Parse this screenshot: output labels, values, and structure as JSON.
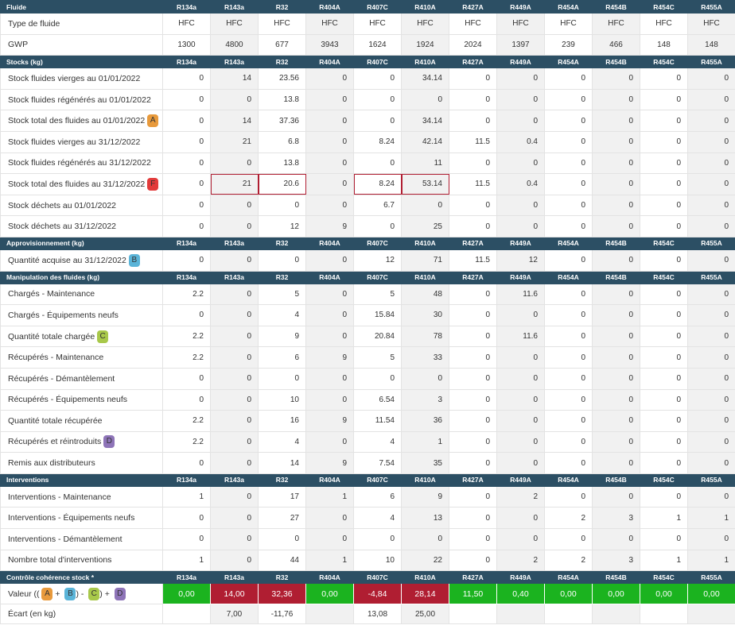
{
  "fluids": [
    "R134a",
    "R143a",
    "R32",
    "R404A",
    "R407C",
    "R410A",
    "R427A",
    "R449A",
    "R454A",
    "R454B",
    "R454C",
    "R455A"
  ],
  "colors": {
    "header_bg": "#2c4f64",
    "green": "#1bb31f",
    "red": "#b01e32",
    "badge_A": "#e89a3c",
    "badge_B": "#5ab4d8",
    "badge_C": "#a8c84a",
    "badge_D": "#8e74b8",
    "badge_F": "#e23b3b"
  },
  "sections": [
    {
      "title": "Fluide",
      "rows": [
        {
          "label": "Type de fluide",
          "align": "center",
          "values": [
            "HFC",
            "HFC",
            "HFC",
            "HFC",
            "HFC",
            "HFC",
            "HFC",
            "HFC",
            "HFC",
            "HFC",
            "HFC",
            "HFC"
          ]
        },
        {
          "label": "GWP",
          "align": "center",
          "values": [
            "1300",
            "4800",
            "677",
            "3943",
            "1624",
            "1924",
            "2024",
            "1397",
            "239",
            "466",
            "148",
            "148"
          ]
        }
      ]
    },
    {
      "title": "Stocks (kg)",
      "rows": [
        {
          "label": "Stock fluides vierges au 01/01/2022",
          "values": [
            "0",
            "14",
            "23.56",
            "0",
            "0",
            "34.14",
            "0",
            "0",
            "0",
            "0",
            "0",
            "0"
          ]
        },
        {
          "label": "Stock fluides régénérés au 01/01/2022",
          "values": [
            "0",
            "0",
            "13.8",
            "0",
            "0",
            "0",
            "0",
            "0",
            "0",
            "0",
            "0",
            "0"
          ]
        },
        {
          "label": "Stock total des fluides au 01/01/2022",
          "badge": "A",
          "values": [
            "0",
            "14",
            "37.36",
            "0",
            "0",
            "34.14",
            "0",
            "0",
            "0",
            "0",
            "0",
            "0"
          ]
        },
        {
          "label": "Stock fluides vierges au 31/12/2022",
          "values": [
            "0",
            "21",
            "6.8",
            "0",
            "8.24",
            "42.14",
            "11.5",
            "0.4",
            "0",
            "0",
            "0",
            "0"
          ]
        },
        {
          "label": "Stock fluides régénérés au 31/12/2022",
          "values": [
            "0",
            "0",
            "13.8",
            "0",
            "0",
            "11",
            "0",
            "0",
            "0",
            "0",
            "0",
            "0"
          ]
        },
        {
          "label": "Stock total des fluides au 31/12/2022",
          "badge": "F",
          "highlight": [
            1,
            2,
            4,
            5
          ],
          "values": [
            "0",
            "21",
            "20.6",
            "0",
            "8.24",
            "53.14",
            "11.5",
            "0.4",
            "0",
            "0",
            "0",
            "0"
          ]
        },
        {
          "label": "Stock déchets au 01/01/2022",
          "values": [
            "0",
            "0",
            "0",
            "0",
            "6.7",
            "0",
            "0",
            "0",
            "0",
            "0",
            "0",
            "0"
          ]
        },
        {
          "label": "Stock déchets au 31/12/2022",
          "values": [
            "0",
            "0",
            "12",
            "9",
            "0",
            "25",
            "0",
            "0",
            "0",
            "0",
            "0",
            "0"
          ]
        }
      ]
    },
    {
      "title": "Approvisionnement (kg)",
      "rows": [
        {
          "label": "Quantité acquise au 31/12/2022",
          "badge": "B",
          "values": [
            "0",
            "0",
            "0",
            "0",
            "12",
            "71",
            "11.5",
            "12",
            "0",
            "0",
            "0",
            "0"
          ]
        }
      ]
    },
    {
      "title": "Manipulation des fluides (kg)",
      "rows": [
        {
          "label": "Chargés - Maintenance",
          "values": [
            "2.2",
            "0",
            "5",
            "0",
            "5",
            "48",
            "0",
            "11.6",
            "0",
            "0",
            "0",
            "0"
          ]
        },
        {
          "label": "Chargés - Équipements neufs",
          "values": [
            "0",
            "0",
            "4",
            "0",
            "15.84",
            "30",
            "0",
            "0",
            "0",
            "0",
            "0",
            "0"
          ]
        },
        {
          "label": "Quantité totale chargée",
          "badge": "C",
          "values": [
            "2.2",
            "0",
            "9",
            "0",
            "20.84",
            "78",
            "0",
            "11.6",
            "0",
            "0",
            "0",
            "0"
          ]
        },
        {
          "label": "Récupérés - Maintenance",
          "values": [
            "2.2",
            "0",
            "6",
            "9",
            "5",
            "33",
            "0",
            "0",
            "0",
            "0",
            "0",
            "0"
          ]
        },
        {
          "label": "Récupérés - Démantèlement",
          "values": [
            "0",
            "0",
            "0",
            "0",
            "0",
            "0",
            "0",
            "0",
            "0",
            "0",
            "0",
            "0"
          ]
        },
        {
          "label": "Récupérés - Équipements neufs",
          "values": [
            "0",
            "0",
            "10",
            "0",
            "6.54",
            "3",
            "0",
            "0",
            "0",
            "0",
            "0",
            "0"
          ]
        },
        {
          "label": "Quantité totale récupérée",
          "values": [
            "2.2",
            "0",
            "16",
            "9",
            "11.54",
            "36",
            "0",
            "0",
            "0",
            "0",
            "0",
            "0"
          ]
        },
        {
          "label": "Récupérés et réintroduits",
          "badge": "D",
          "values": [
            "2.2",
            "0",
            "4",
            "0",
            "4",
            "1",
            "0",
            "0",
            "0",
            "0",
            "0",
            "0"
          ]
        },
        {
          "label": "Remis aux distributeurs",
          "values": [
            "0",
            "0",
            "14",
            "9",
            "7.54",
            "35",
            "0",
            "0",
            "0",
            "0",
            "0",
            "0"
          ]
        }
      ]
    },
    {
      "title": "Interventions",
      "rows": [
        {
          "label": "Interventions - Maintenance",
          "values": [
            "1",
            "0",
            "17",
            "1",
            "6",
            "9",
            "0",
            "2",
            "0",
            "0",
            "0",
            "0"
          ]
        },
        {
          "label": "Interventions - Équipements neufs",
          "values": [
            "0",
            "0",
            "27",
            "0",
            "4",
            "13",
            "0",
            "0",
            "2",
            "3",
            "1",
            "1"
          ]
        },
        {
          "label": "Interventions - Démantèlement",
          "values": [
            "0",
            "0",
            "0",
            "0",
            "0",
            "0",
            "0",
            "0",
            "0",
            "0",
            "0",
            "0"
          ]
        },
        {
          "label": "Nombre total d'interventions",
          "values": [
            "1",
            "0",
            "44",
            "1",
            "10",
            "22",
            "0",
            "2",
            "2",
            "3",
            "1",
            "1"
          ]
        }
      ]
    }
  ],
  "control": {
    "title": "Contrôle cohérence stock *",
    "value_label_prefix": "Valeur ((",
    "value_values": [
      "0,00",
      "14,00",
      "32,36",
      "0,00",
      "-4,84",
      "28,14",
      "11,50",
      "0,40",
      "0,00",
      "0,00",
      "0,00",
      "0,00"
    ],
    "value_status": [
      "ok",
      "bad",
      "bad",
      "ok",
      "bad",
      "bad",
      "ok",
      "ok",
      "ok",
      "ok",
      "ok",
      "ok"
    ],
    "ecart_label": "Écart (en kg)",
    "ecart_values": [
      "",
      "7,00",
      "-11,76",
      "",
      "13,08",
      "25,00",
      "",
      "",
      "",
      "",
      "",
      ""
    ]
  }
}
